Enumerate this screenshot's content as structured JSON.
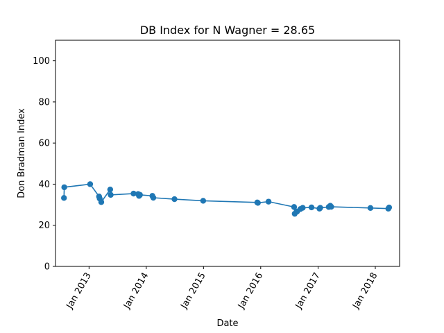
{
  "chart_data": {
    "type": "line",
    "title": "DB Index for N Wagner = 28.65",
    "xlabel": "Date",
    "ylabel": "Don Bradman Index",
    "ylim": [
      0,
      110
    ],
    "xlim": [
      "2012-06-01",
      "2018-06-05"
    ],
    "y_ticks": [
      0,
      20,
      40,
      60,
      80,
      100
    ],
    "x_ticks": [
      {
        "date": "2013-01-01",
        "label": "Jan 2013"
      },
      {
        "date": "2014-01-01",
        "label": "Jan 2014"
      },
      {
        "date": "2015-01-01",
        "label": "Jan 2015"
      },
      {
        "date": "2016-01-01",
        "label": "Jan 2016"
      },
      {
        "date": "2017-01-01",
        "label": "Jan 2017"
      },
      {
        "date": "2018-01-01",
        "label": "Jan 2018"
      }
    ],
    "grid": false,
    "color": "#1f77b4",
    "series": [
      {
        "x": [
          "2012-07-25",
          "2012-07-27",
          "2013-01-08",
          "2013-03-06",
          "2013-03-10",
          "2013-03-20",
          "2013-05-16",
          "2013-05-19",
          "2013-10-12",
          "2013-11-10",
          "2013-11-16",
          "2013-11-22",
          "2014-02-09",
          "2014-02-15",
          "2014-06-30",
          "2014-12-30",
          "2015-12-10",
          "2015-12-14",
          "2016-02-20",
          "2016-08-01",
          "2016-08-05",
          "2016-08-20",
          "2016-09-10",
          "2016-09-25",
          "2016-11-20",
          "2017-01-10",
          "2017-01-15",
          "2017-03-10",
          "2017-03-20",
          "2017-03-26",
          "2017-12-01",
          "2018-03-25",
          "2018-03-30"
        ],
        "y": [
          33.3,
          38.5,
          40.0,
          34.0,
          33.0,
          31.3,
          37.4,
          34.8,
          35.4,
          35.2,
          34.3,
          34.8,
          34.3,
          33.4,
          32.7,
          31.9,
          31.1,
          30.9,
          31.5,
          28.9,
          25.6,
          26.7,
          27.9,
          28.5,
          28.7,
          28.1,
          28.5,
          28.9,
          29.5,
          29.0,
          28.4,
          28.1,
          28.65
        ]
      }
    ]
  }
}
